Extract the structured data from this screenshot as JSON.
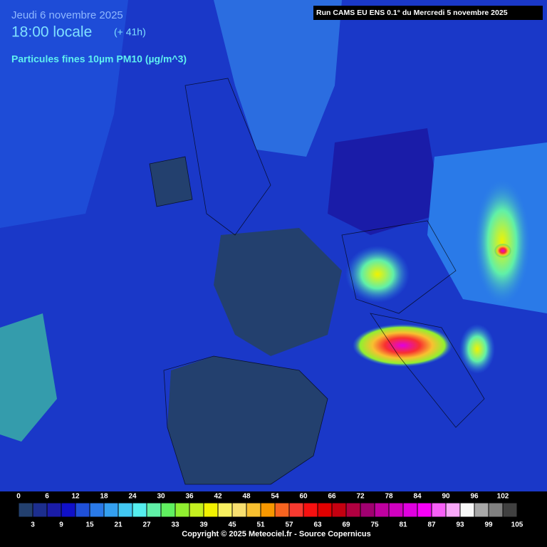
{
  "header": {
    "date": "Jeudi 6 novembre 2025",
    "time": "18:00 locale",
    "lead": "(+ 41h)",
    "parameter": "Particules fines 10µm PM10 (µg/m^3)",
    "run": "Run CAMS EU ENS 0.1° du Mercredi 5 novembre 2025"
  },
  "legend": {
    "ticks": [
      0,
      3,
      6,
      9,
      12,
      15,
      18,
      21,
      24,
      27,
      30,
      33,
      36,
      39,
      42,
      45,
      48,
      51,
      54,
      57,
      60,
      63,
      66,
      69,
      72,
      75,
      78,
      81,
      84,
      87,
      90,
      93,
      96,
      99,
      102,
      105
    ],
    "colors": [
      "#23406e",
      "#1c2e8e",
      "#1a1ca8",
      "#1010c8",
      "#1f50d8",
      "#2a7ae8",
      "#34a0f0",
      "#42c8f2",
      "#55eeee",
      "#60f0a8",
      "#60f060",
      "#90f030",
      "#c4f020",
      "#f2f200",
      "#f8f060",
      "#f8e070",
      "#f8c030",
      "#f89800",
      "#f86420",
      "#f83a30",
      "#f81010",
      "#e00000",
      "#c40010",
      "#b00040",
      "#a00070",
      "#c000a0",
      "#d000c0",
      "#e000e0",
      "#f800f8",
      "#f860f8",
      "#f8a8f8",
      "#f8f8f8",
      "#a8a8a8",
      "#808080",
      "#404040",
      "#000000"
    ]
  },
  "footer": {
    "copyright": "Copyright © 2025 Meteociel.fr - Source Copernicus"
  }
}
